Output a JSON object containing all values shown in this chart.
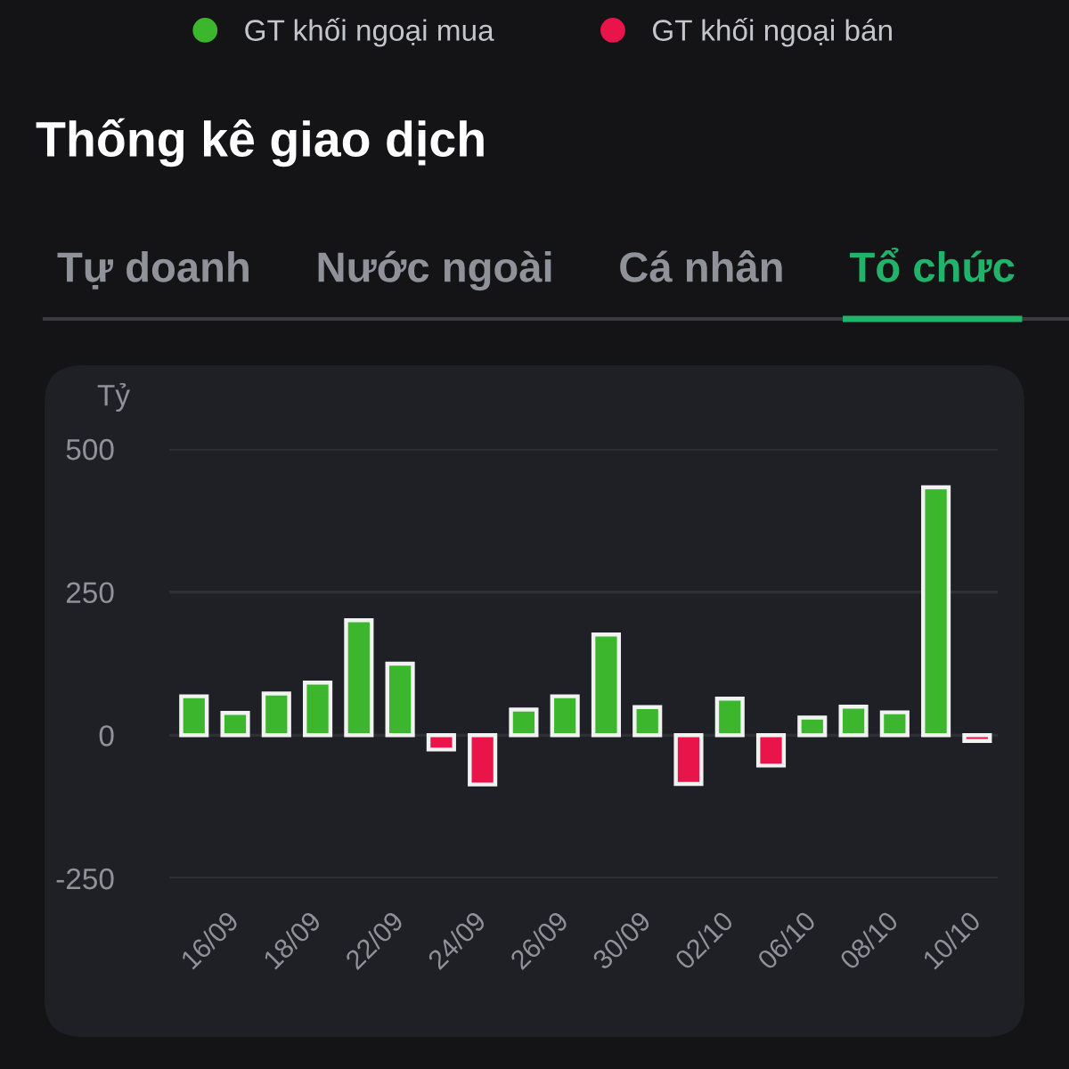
{
  "chart_data": {
    "type": "bar",
    "title": "Thống kê giao dịch",
    "ylabel": "Tỷ",
    "annotations": [
      "Tự doanh",
      "Nước ngoài",
      "Cá nhân",
      "Tổ chức"
    ],
    "categories": [
      null,
      "16/09",
      null,
      "18/09",
      null,
      "22/09",
      null,
      "24/09",
      null,
      "26/09",
      null,
      "30/09",
      null,
      "02/10",
      null,
      "06/10",
      null,
      "08/10",
      null,
      "10/10"
    ],
    "series": [
      {
        "name": "GT khối ngoại mua",
        "color": "#3cb62c",
        "values": [
          68,
          39,
          73,
          92,
          201,
          125,
          null,
          null,
          45,
          68,
          176,
          49,
          null,
          64,
          null,
          31,
          50,
          40,
          433,
          null
        ]
      },
      {
        "name": "GT khối ngoại bán",
        "color": "#e9154a",
        "values": [
          null,
          null,
          null,
          null,
          null,
          null,
          -25,
          -86,
          null,
          null,
          null,
          null,
          -85,
          null,
          -53,
          null,
          null,
          null,
          null,
          -10
        ]
      }
    ],
    "stacked": true,
    "ylim": [
      -250,
      500
    ],
    "yticks": [
      -250,
      0,
      250,
      500
    ],
    "grid": "y",
    "legend": "top"
  }
}
